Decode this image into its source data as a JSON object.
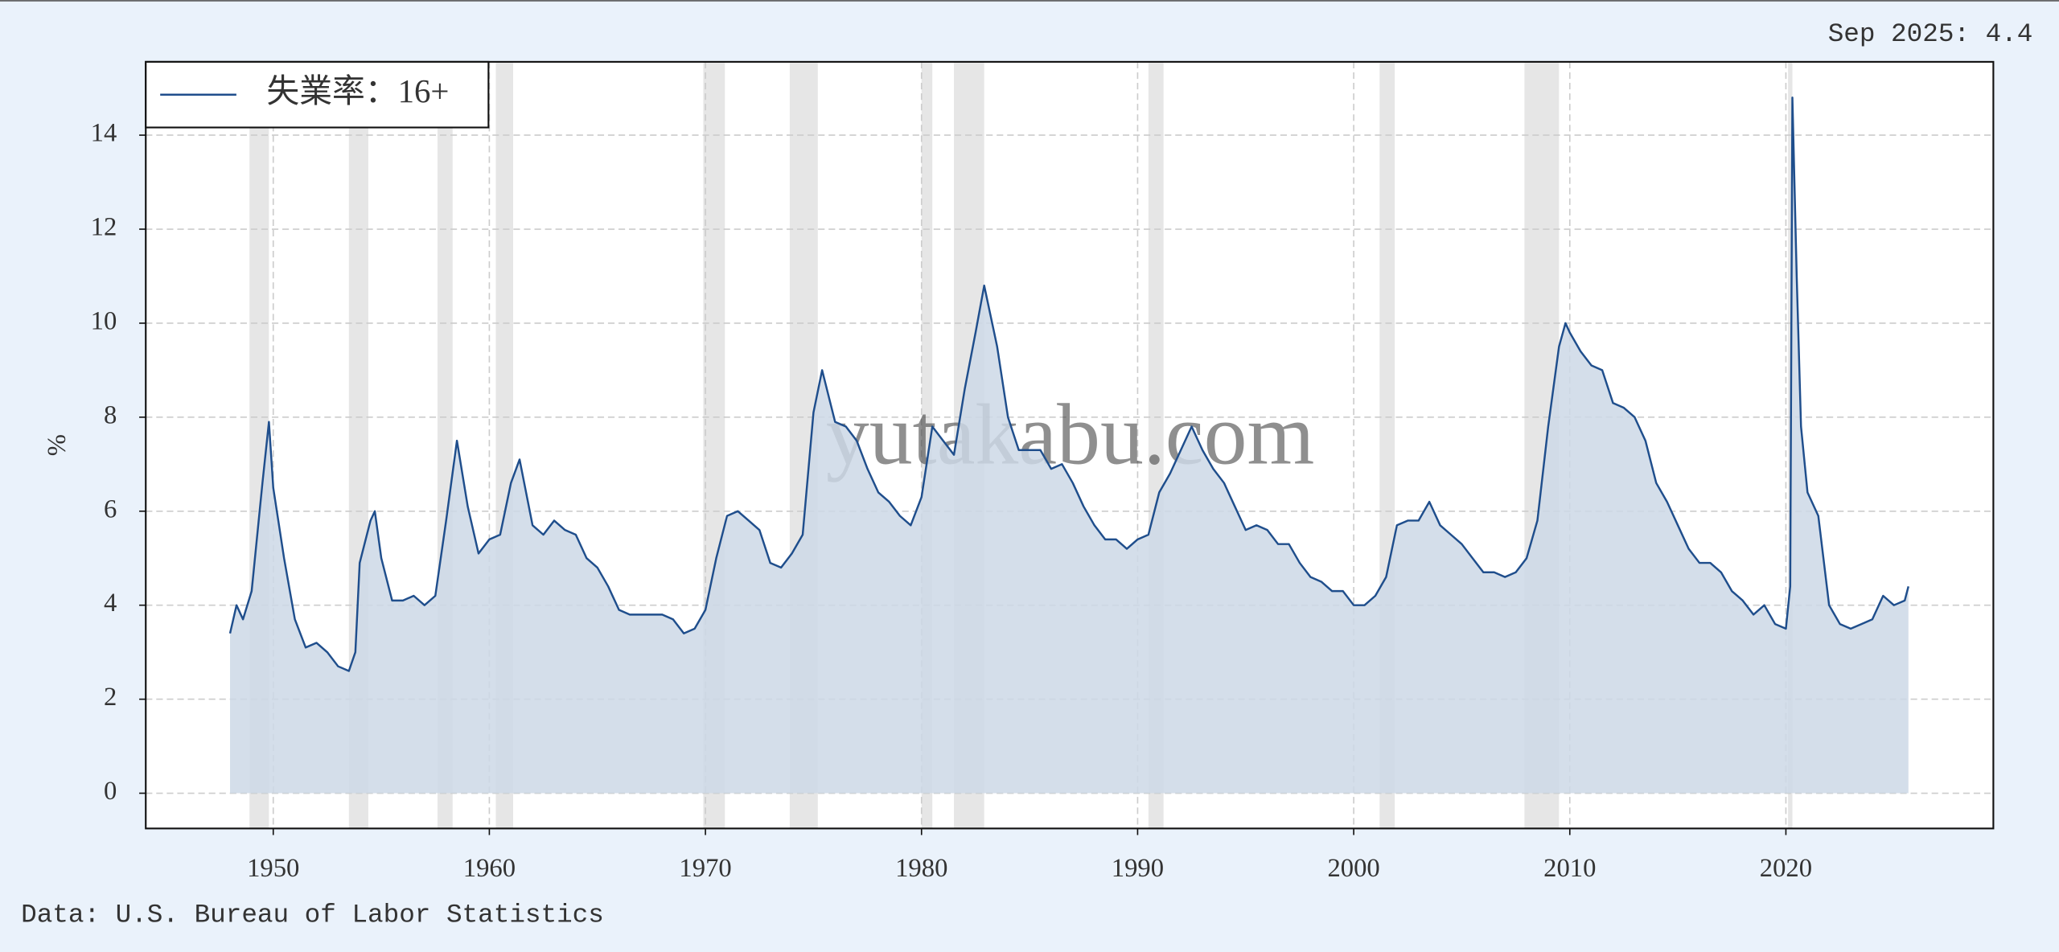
{
  "chart_data": {
    "type": "area",
    "annotation": "Sep 2025: 4.4",
    "source": "Data: U.S. Bureau of Labor Statistics",
    "watermark": "yutakabu.com",
    "ylabel": "%",
    "legend": "upper left",
    "grid": true,
    "xlim": [
      1944.1,
      2029.6
    ],
    "ylim": [
      -0.75,
      15.56
    ],
    "xticks": [
      1950,
      1960,
      1970,
      1980,
      1990,
      2000,
      2010,
      2020
    ],
    "yticks": [
      0,
      2,
      4,
      6,
      8,
      10,
      12,
      14
    ],
    "recession_color": "#e6e6e6",
    "recessions": [
      [
        1948.9,
        1949.8
      ],
      [
        1953.5,
        1954.4
      ],
      [
        1957.6,
        1958.3
      ],
      [
        1960.3,
        1961.1
      ],
      [
        1969.9,
        1970.9
      ],
      [
        1973.9,
        1975.2
      ],
      [
        1980.0,
        1980.5
      ],
      [
        1981.5,
        1982.9
      ],
      [
        1990.5,
        1991.2
      ],
      [
        2001.2,
        2001.9
      ],
      [
        2007.9,
        2009.5
      ],
      [
        2020.1,
        2020.3
      ]
    ],
    "x": [
      1948.0,
      1948.3,
      1948.6,
      1949.0,
      1949.5,
      1949.8,
      1950.0,
      1950.5,
      1951.0,
      1951.5,
      1952.0,
      1952.5,
      1953.0,
      1953.5,
      1953.8,
      1954.0,
      1954.5,
      1954.7,
      1955.0,
      1955.5,
      1956.0,
      1956.5,
      1957.0,
      1957.5,
      1958.0,
      1958.5,
      1959.0,
      1959.5,
      1960.0,
      1960.5,
      1961.0,
      1961.4,
      1962.0,
      1962.5,
      1963.0,
      1963.5,
      1964.0,
      1964.5,
      1965.0,
      1965.5,
      1966.0,
      1966.5,
      1967.0,
      1967.5,
      1968.0,
      1968.5,
      1969.0,
      1969.5,
      1970.0,
      1970.5,
      1971.0,
      1971.5,
      1972.0,
      1972.5,
      1973.0,
      1973.5,
      1974.0,
      1974.5,
      1975.0,
      1975.4,
      1976.0,
      1976.5,
      1977.0,
      1977.5,
      1978.0,
      1978.5,
      1979.0,
      1979.5,
      1980.0,
      1980.5,
      1981.0,
      1981.5,
      1982.0,
      1982.5,
      1982.9,
      1983.5,
      1984.0,
      1984.5,
      1985.0,
      1985.5,
      1986.0,
      1986.5,
      1987.0,
      1987.5,
      1988.0,
      1988.5,
      1989.0,
      1989.5,
      1990.0,
      1990.5,
      1991.0,
      1991.5,
      1992.0,
      1992.5,
      1993.0,
      1993.5,
      1994.0,
      1994.5,
      1995.0,
      1995.5,
      1996.0,
      1996.5,
      1997.0,
      1997.5,
      1998.0,
      1998.5,
      1999.0,
      1999.5,
      2000.0,
      2000.5,
      2001.0,
      2001.5,
      2002.0,
      2002.5,
      2003.0,
      2003.5,
      2004.0,
      2004.5,
      2005.0,
      2005.5,
      2006.0,
      2006.5,
      2007.0,
      2007.5,
      2008.0,
      2008.5,
      2009.0,
      2009.5,
      2009.8,
      2010.0,
      2010.5,
      2011.0,
      2011.5,
      2012.0,
      2012.5,
      2013.0,
      2013.5,
      2014.0,
      2014.5,
      2015.0,
      2015.5,
      2016.0,
      2016.5,
      2017.0,
      2017.5,
      2018.0,
      2018.5,
      2019.0,
      2019.5,
      2020.0,
      2020.2,
      2020.3,
      2020.5,
      2020.7,
      2021.0,
      2021.5,
      2022.0,
      2022.5,
      2023.0,
      2023.5,
      2024.0,
      2024.5,
      2025.0,
      2025.5,
      2025.67
    ],
    "series": [
      {
        "name": "失業率：16+",
        "color": "#1f4e8c",
        "fill": "#ccd8e6",
        "values": [
          3.4,
          4.0,
          3.7,
          4.3,
          6.6,
          7.9,
          6.5,
          5.0,
          3.7,
          3.1,
          3.2,
          3.0,
          2.7,
          2.6,
          3.0,
          4.9,
          5.8,
          6.0,
          5.0,
          4.1,
          4.1,
          4.2,
          4.0,
          4.2,
          5.8,
          7.5,
          6.1,
          5.1,
          5.4,
          5.5,
          6.6,
          7.1,
          5.7,
          5.5,
          5.8,
          5.6,
          5.5,
          5.0,
          4.8,
          4.4,
          3.9,
          3.8,
          3.8,
          3.8,
          3.8,
          3.7,
          3.4,
          3.5,
          3.9,
          5.0,
          5.9,
          6.0,
          5.8,
          5.6,
          4.9,
          4.8,
          5.1,
          5.5,
          8.1,
          9.0,
          7.9,
          7.8,
          7.5,
          6.9,
          6.4,
          6.2,
          5.9,
          5.7,
          6.3,
          7.8,
          7.5,
          7.2,
          8.6,
          9.8,
          10.8,
          9.5,
          8.0,
          7.3,
          7.3,
          7.3,
          6.9,
          7.0,
          6.6,
          6.1,
          5.7,
          5.4,
          5.4,
          5.2,
          5.4,
          5.5,
          6.4,
          6.8,
          7.3,
          7.8,
          7.3,
          6.9,
          6.6,
          6.1,
          5.6,
          5.7,
          5.6,
          5.3,
          5.3,
          4.9,
          4.6,
          4.5,
          4.3,
          4.3,
          4.0,
          4.0,
          4.2,
          4.6,
          5.7,
          5.8,
          5.8,
          6.2,
          5.7,
          5.5,
          5.3,
          5.0,
          4.7,
          4.7,
          4.6,
          4.7,
          5.0,
          5.8,
          7.8,
          9.5,
          10.0,
          9.8,
          9.4,
          9.1,
          9.0,
          8.3,
          8.2,
          8.0,
          7.5,
          6.6,
          6.2,
          5.7,
          5.2,
          4.9,
          4.9,
          4.7,
          4.3,
          4.1,
          3.8,
          4.0,
          3.6,
          3.5,
          4.4,
          14.8,
          11.0,
          7.8,
          6.4,
          5.9,
          4.0,
          3.6,
          3.5,
          3.6,
          3.7,
          4.2,
          4.0,
          4.1,
          4.4
        ]
      }
    ]
  }
}
